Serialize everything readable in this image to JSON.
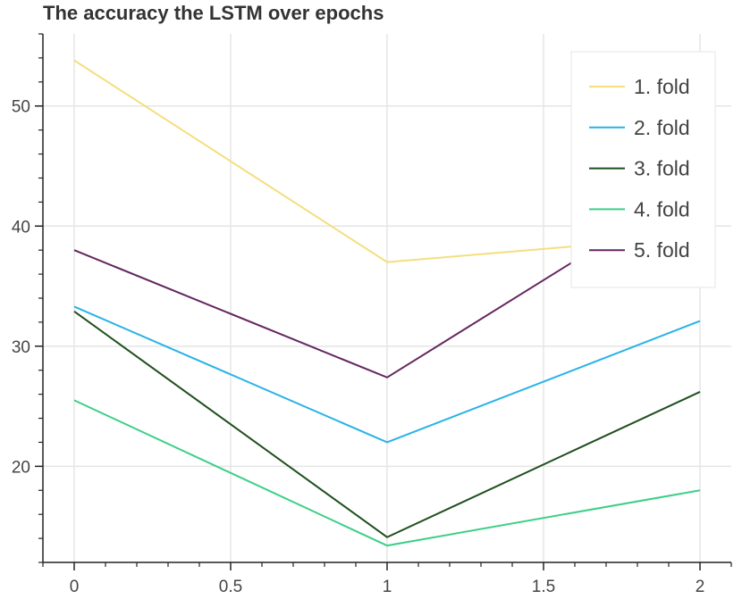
{
  "chart_data": {
    "type": "line",
    "title": "The accuracy the LSTM over epochs",
    "xlabel": "",
    "ylabel": "",
    "x": [
      0,
      1,
      2
    ],
    "xlim": [
      -0.1,
      2.1
    ],
    "ylim": [
      12,
      56
    ],
    "x_ticks": [
      0,
      0.5,
      1,
      1.5,
      2
    ],
    "x_tick_labels": [
      "0",
      "0.5",
      "1",
      "1.5",
      "2"
    ],
    "y_ticks": [
      20,
      30,
      40,
      50
    ],
    "y_tick_labels": [
      "20",
      "30",
      "40",
      "50"
    ],
    "grid": true,
    "legend_position": "top-right",
    "series": [
      {
        "name": "1. fold",
        "color": "#f5de7e",
        "values": [
          53.8,
          37.0,
          39.2
        ]
      },
      {
        "name": "2. fold",
        "color": "#29b2e6",
        "values": [
          33.3,
          22.0,
          32.1
        ]
      },
      {
        "name": "3. fold",
        "color": "#1f4f1f",
        "values": [
          32.9,
          14.1,
          26.2
        ]
      },
      {
        "name": "4. fold",
        "color": "#3ccf88",
        "values": [
          25.5,
          13.4,
          18.0
        ]
      },
      {
        "name": "5. fold",
        "color": "#63265e",
        "values": [
          38.0,
          27.4,
          43.6
        ]
      }
    ]
  }
}
